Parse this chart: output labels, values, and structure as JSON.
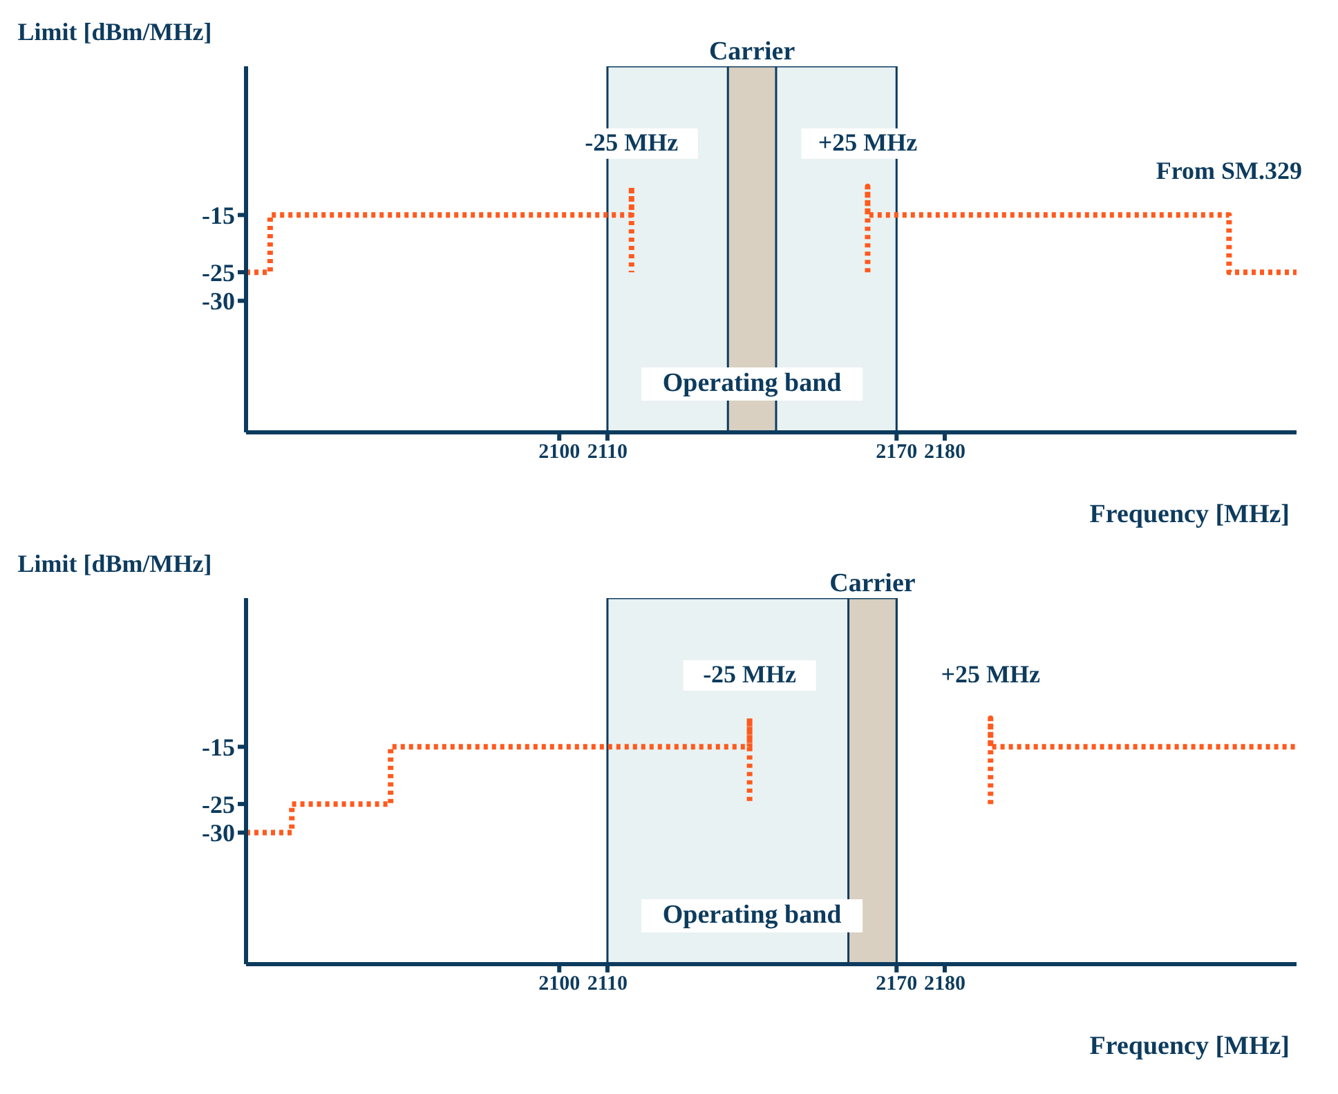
{
  "chart_data": [
    {
      "type": "line",
      "xlabel": "Frequency [MHz]",
      "ylabel": "Limit [dBm/MHz]",
      "xlim": [
        2035,
        2253
      ],
      "ylim": [
        -53,
        11
      ],
      "xticks": [
        2100,
        2110,
        2170,
        2180
      ],
      "yticks": [
        -15,
        -25,
        -30
      ],
      "line_style": "dotted",
      "marker": "none",
      "series": [
        {
          "color": "#ff5a1e",
          "x": [
            2035,
            2040,
            2040,
            2115,
            2115,
            2115
          ],
          "values": [
            -25,
            -25,
            -15,
            -15,
            -10,
            -25
          ]
        },
        {
          "color": "#ff5a1e",
          "x": [
            2164,
            2164,
            2164,
            2239,
            2239,
            2253
          ],
          "values": [
            -25,
            -10,
            -15,
            -15,
            -25,
            -25
          ]
        }
      ],
      "bands": [
        {
          "axis": "x",
          "from": 2110,
          "to": 2170,
          "label": "Operating band",
          "color": "#cfe3e3"
        },
        {
          "axis": "x",
          "from": 2135,
          "to": 2145,
          "label": "Carrier",
          "color": "#d9d0c1"
        }
      ],
      "annotations": [
        {
          "text": "-25 MHz",
          "x": 2115,
          "y": -10
        },
        {
          "text": "+25 MHz",
          "x": 2164,
          "y": -10
        },
        {
          "text": "From SM.329",
          "x": 2239,
          "y": -15
        }
      ]
    },
    {
      "type": "line",
      "xlabel": "Frequency [MHz]",
      "ylabel": "Limit [dBm/MHz]",
      "xlim": [
        2035,
        2253
      ],
      "ylim": [
        -53,
        11
      ],
      "xticks": [
        2100,
        2110,
        2170,
        2180
      ],
      "yticks": [
        -15,
        -25,
        -30
      ],
      "line_style": "dotted",
      "marker": "none",
      "series": [
        {
          "color": "#ff5a1e",
          "x": [
            2035,
            2044.5,
            2044.5,
            2065,
            2065,
            2139.5,
            2139.5,
            2139.5
          ],
          "values": [
            -30,
            -30,
            -25,
            -25,
            -15,
            -15,
            -10,
            -25
          ]
        },
        {
          "color": "#ff5a1e",
          "x": [
            2189.5,
            2189.5,
            2189.5,
            2253
          ],
          "values": [
            -25,
            -10,
            -15,
            -15
          ]
        }
      ],
      "bands": [
        {
          "axis": "x",
          "from": 2110,
          "to": 2170,
          "label": "Operating band",
          "color": "#cfe3e3"
        },
        {
          "axis": "x",
          "from": 2160,
          "to": 2170,
          "label": "Carrier",
          "color": "#d9d0c1"
        }
      ],
      "annotations": [
        {
          "text": "-25 MHz",
          "x": 2139.5,
          "y": -10
        },
        {
          "text": "+25 MHz",
          "x": 2189.5,
          "y": -10
        }
      ]
    }
  ]
}
